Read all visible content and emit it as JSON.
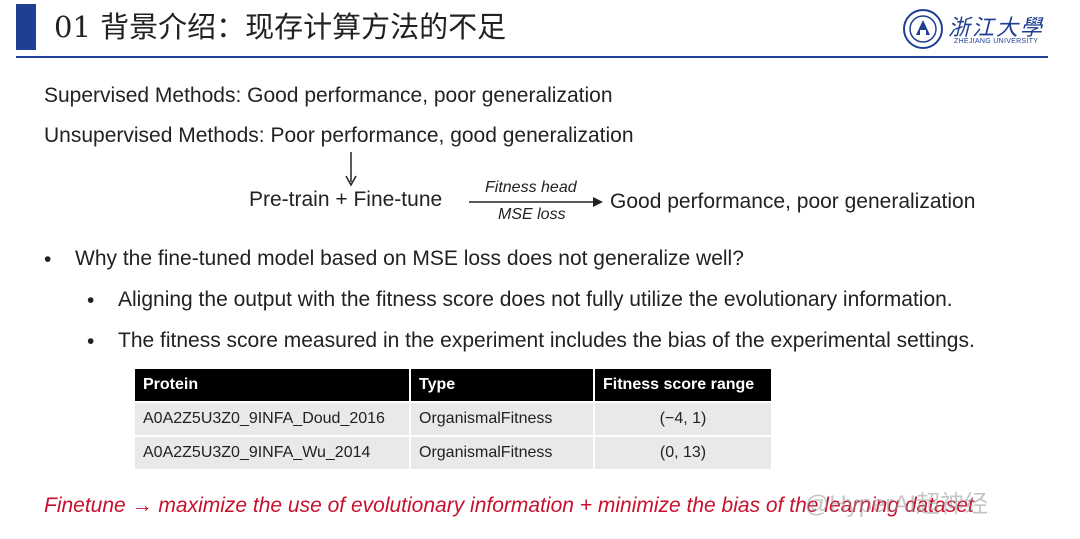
{
  "header": {
    "title": "01 背景介绍：现存计算方法的不足",
    "logo_text": "浙江大學",
    "logo_subtext": "ZHEJIANG UNIVERSITY",
    "accent_color": "#1f3f93"
  },
  "intro": {
    "supervised": "Supervised Methods: Good performance, poor generalization",
    "unsupervised": "Unsupervised Methods: Poor performance, good generalization"
  },
  "flow": {
    "start": "Pre-train + Fine-tune",
    "arrow_top": "Fitness head",
    "arrow_bottom": "MSE loss",
    "result": "Good performance, poor generalization"
  },
  "bullets": {
    "main": "Why the fine-tuned model based on MSE loss does not generalize well?",
    "sub": [
      "Aligning the output with the fitness score does not fully utilize the evolutionary information.",
      "The fitness score measured in the experiment includes the bias of the experimental settings."
    ],
    "bullet_symbol": "•"
  },
  "table": {
    "headers": [
      "Protein",
      "Type",
      "Fitness score range"
    ],
    "rows": [
      [
        "A0A2Z5U3Z0_9INFA_Doud_2016",
        "OrganismalFitness",
        "(−4,  1)"
      ],
      [
        "A0A2Z5U3Z0_9INFA_Wu_2014",
        "OrganismalFitness",
        "(0,  13)"
      ]
    ]
  },
  "conclusion": {
    "text": "Finetune → maximize the use of evolutionary information + minimize the bias of the learning dataset",
    "color": "#c8102e"
  },
  "watermark": "@HyperAI超神经"
}
